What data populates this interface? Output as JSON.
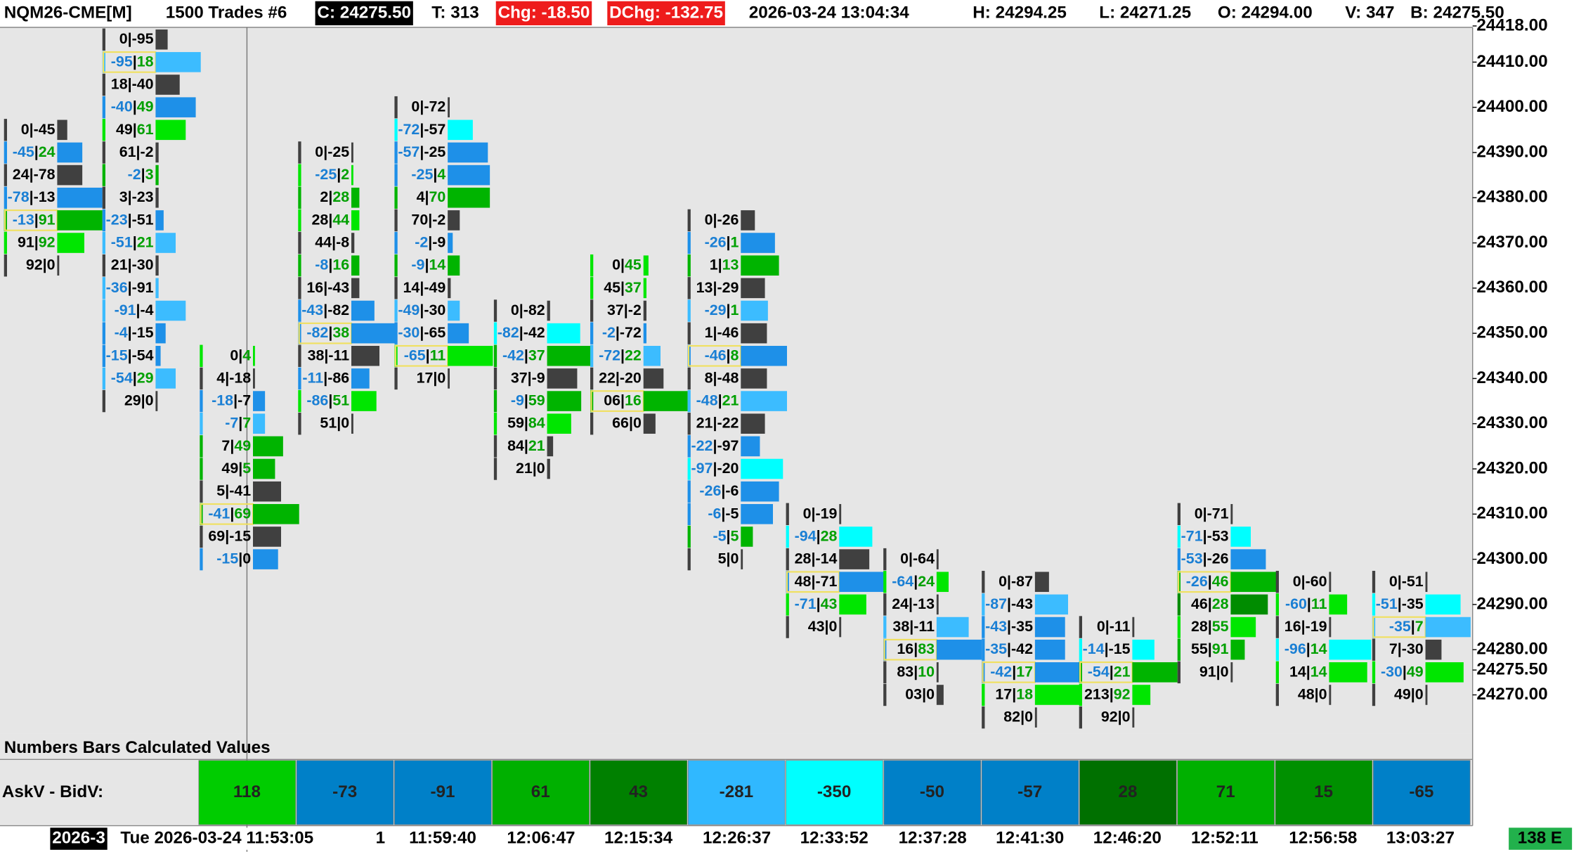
{
  "header": {
    "items": [
      {
        "text": "NQM26-CME[M]"
      },
      {
        "text": "1500 Trades #6"
      },
      {
        "text": "C: 24275.50",
        "bg": "#000000"
      },
      {
        "text": "T: 313"
      },
      {
        "text": "Chg: -18.50",
        "bg": "#ee1c1c"
      },
      {
        "text": "DChg: -132.75",
        "bg": "#ee1c1c"
      },
      {
        "text": "2026-03-24 13:04:34"
      },
      {
        "text": "H: 24294.25"
      },
      {
        "text": "L: 24271.25"
      },
      {
        "text": "O: 24294.00"
      },
      {
        "text": "V: 347"
      },
      {
        "text": "B: 24275.50"
      }
    ]
  },
  "price_axis": {
    "ylim": [
      24261.5,
      24417.7
    ],
    "ticks": [
      {
        "value": 24418,
        "label": "24418.00"
      },
      {
        "value": 24410,
        "label": "24410.00"
      },
      {
        "value": 24400,
        "label": "24400.00"
      },
      {
        "value": 24390,
        "label": "24390.00"
      },
      {
        "value": 24380,
        "label": "24380.00"
      },
      {
        "value": 24370,
        "label": "24370.00"
      },
      {
        "value": 24360,
        "label": "24360.00"
      },
      {
        "value": 24350,
        "label": "24350.00"
      },
      {
        "value": 24340,
        "label": "24340.00"
      },
      {
        "value": 24330,
        "label": "24330.00"
      },
      {
        "value": 24320,
        "label": "24320.00"
      },
      {
        "value": 24310,
        "label": "24310.00"
      },
      {
        "value": 24300,
        "label": "24300.00"
      },
      {
        "value": 24290,
        "label": "24290.00"
      },
      {
        "value": 24280,
        "label": "24280.00"
      },
      {
        "value": 24275.5,
        "label": "24275.50"
      },
      {
        "value": 24270,
        "label": "24270.00"
      }
    ]
  },
  "bars": [
    {
      "top": 24395,
      "cells": [
        {
          "text": "0|-45",
          "volume": 10,
          "color": "#404040"
        },
        {
          "text": "-45|24",
          "volume": 25,
          "color": "#1e90e8"
        },
        {
          "text": "24|-78",
          "volume": 25,
          "color": "#404040"
        },
        {
          "text": "-78|-13",
          "volume": 45,
          "color": "#1e90e8"
        },
        {
          "text": "-13|91",
          "volume": 45,
          "color": "#00b400",
          "box": true
        },
        {
          "text": "91|92",
          "volume": 27,
          "color": "#00e600"
        },
        {
          "text": "92|0",
          "volume": 2,
          "color": "#404040"
        }
      ]
    },
    {
      "top": 24415,
      "cells": [
        {
          "text": "0|-95",
          "volume": 12,
          "color": "#404040"
        },
        {
          "text": "-95|18",
          "volume": 45,
          "color": "#3cbcff",
          "box": true
        },
        {
          "text": "18|-40",
          "volume": 24,
          "color": "#404040"
        },
        {
          "text": "-40|49",
          "volume": 40,
          "color": "#1e90e8"
        },
        {
          "text": "49|61",
          "volume": 30,
          "color": "#00e600"
        },
        {
          "text": "61|-2",
          "volume": 3,
          "color": "#404040"
        },
        {
          "text": "-2|3",
          "volume": 3,
          "color": "#00b400"
        },
        {
          "text": "3|-23",
          "volume": 3,
          "color": "#404040"
        },
        {
          "text": "-23|-51",
          "volume": 8,
          "color": "#1e90e8"
        },
        {
          "text": "-51|21",
          "volume": 20,
          "color": "#3cbcff"
        },
        {
          "text": "21|-30",
          "volume": 3,
          "color": "#404040"
        },
        {
          "text": "-36|-91",
          "volume": 3,
          "color": "#3cbcff"
        },
        {
          "text": "-91|-4",
          "volume": 30,
          "color": "#3cbcff"
        },
        {
          "text": "-4|-15",
          "volume": 10,
          "color": "#1e90e8"
        },
        {
          "text": "-15|-54",
          "volume": 5,
          "color": "#1e90e8"
        },
        {
          "text": "-54|29",
          "volume": 20,
          "color": "#3cbcff"
        },
        {
          "text": "29|0",
          "volume": 2,
          "color": "#404040"
        }
      ]
    },
    {
      "top": 24345,
      "cells": [
        {
          "text": "0|4",
          "volume": 2,
          "color": "#00e600"
        },
        {
          "text": "4|-18",
          "volume": 2,
          "color": "#404040"
        },
        {
          "text": "-18|-7",
          "volume": 12,
          "color": "#1e90e8"
        },
        {
          "text": "-7|7",
          "volume": 12,
          "color": "#3cbcff"
        },
        {
          "text": "7|49",
          "volume": 30,
          "color": "#00b400"
        },
        {
          "text": "49|5",
          "volume": 22,
          "color": "#00b400"
        },
        {
          "text": "5|-41",
          "volume": 28,
          "color": "#404040"
        },
        {
          "text": "-41|69",
          "volume": 46,
          "color": "#00b400",
          "box": true
        },
        {
          "text": "69|-15",
          "volume": 28,
          "color": "#404040"
        },
        {
          "text": "-15|0",
          "volume": 25,
          "color": "#1e90e8"
        }
      ]
    },
    {
      "top": 24390,
      "cells": [
        {
          "text": "0|-25",
          "volume": 2,
          "color": "#404040"
        },
        {
          "text": "-25|2",
          "volume": 2,
          "color": "#00e600"
        },
        {
          "text": "2|28",
          "volume": 8,
          "color": "#00b400"
        },
        {
          "text": "28|44",
          "volume": 8,
          "color": "#00e600"
        },
        {
          "text": "44|-8",
          "volume": 3,
          "color": "#404040"
        },
        {
          "text": "-8|16",
          "volume": 8,
          "color": "#00b400"
        },
        {
          "text": "16|-43",
          "volume": 8,
          "color": "#404040"
        },
        {
          "text": "-43|-82",
          "volume": 23,
          "color": "#1e90e8"
        },
        {
          "text": "-82|38",
          "volume": 45,
          "color": "#1e90e8",
          "box": true
        },
        {
          "text": "38|-11",
          "volume": 28,
          "color": "#404040"
        },
        {
          "text": "-11|-86",
          "volume": 18,
          "color": "#1e90e8"
        },
        {
          "text": "-86|51",
          "volume": 25,
          "color": "#00e600"
        },
        {
          "text": "51|0",
          "volume": 2,
          "color": "#404040"
        }
      ]
    },
    {
      "top": 24400,
      "cells": [
        {
          "text": "0|-72",
          "volume": 2,
          "color": "#404040"
        },
        {
          "text": "-72|-57",
          "volume": 25,
          "color": "#00ffff"
        },
        {
          "text": "-57|-25",
          "volume": 40,
          "color": "#1e90e8"
        },
        {
          "text": "-25|4",
          "volume": 42,
          "color": "#1e90e8"
        },
        {
          "text": "4|70",
          "volume": 42,
          "color": "#00b400"
        },
        {
          "text": "70|-2",
          "volume": 12,
          "color": "#404040"
        },
        {
          "text": "-2|-9",
          "volume": 5,
          "color": "#1e90e8"
        },
        {
          "text": "-9|14",
          "volume": 12,
          "color": "#00b400"
        },
        {
          "text": "14|-49",
          "volume": 3,
          "color": "#404040"
        },
        {
          "text": "-49|-30",
          "volume": 12,
          "color": "#3cbcff"
        },
        {
          "text": "-30|-65",
          "volume": 21,
          "color": "#1e90e8"
        },
        {
          "text": "-65|11",
          "volume": 45,
          "color": "#00e600",
          "box": true
        },
        {
          "text": "17|0",
          "volume": 2,
          "color": "#404040"
        }
      ]
    },
    {
      "top": 24355,
      "cells": [
        {
          "text": "0|-82",
          "volume": 3,
          "color": "#404040"
        },
        {
          "text": "-82|-42",
          "volume": 33,
          "color": "#00ffff"
        },
        {
          "text": "-42|37",
          "volume": 45,
          "color": "#00b400"
        },
        {
          "text": "37|-9",
          "volume": 30,
          "color": "#404040"
        },
        {
          "text": "-9|59",
          "volume": 34,
          "color": "#00b400"
        },
        {
          "text": "59|84",
          "volume": 24,
          "color": "#00e600"
        },
        {
          "text": "84|21",
          "volume": 6,
          "color": "#404040"
        },
        {
          "text": "21|0",
          "volume": 3,
          "color": "#404040"
        }
      ]
    },
    {
      "top": 24365,
      "cells": [
        {
          "text": "0|45",
          "volume": 5,
          "color": "#00e600"
        },
        {
          "text": "45|37",
          "volume": 3,
          "color": "#00e600"
        },
        {
          "text": "37|-2",
          "volume": 3,
          "color": "#404040"
        },
        {
          "text": "-2|-72",
          "volume": 3,
          "color": "#1e90e8"
        },
        {
          "text": "-72|22",
          "volume": 17,
          "color": "#3cbcff"
        },
        {
          "text": "22|-20",
          "volume": 20,
          "color": "#404040"
        },
        {
          "text": "06|16",
          "volume": 44,
          "color": "#00b400",
          "box": true
        },
        {
          "text": "66|0",
          "volume": 12,
          "color": "#404040"
        }
      ]
    },
    {
      "top": 24375,
      "cells": [
        {
          "text": "0|-26",
          "volume": 14,
          "color": "#404040"
        },
        {
          "text": "-26|1",
          "volume": 34,
          "color": "#1e90e8"
        },
        {
          "text": "1|13",
          "volume": 38,
          "color": "#00b400"
        },
        {
          "text": "13|-29",
          "volume": 24,
          "color": "#404040"
        },
        {
          "text": "-29|1",
          "volume": 27,
          "color": "#3cbcff"
        },
        {
          "text": "1|-46",
          "volume": 26,
          "color": "#404040"
        },
        {
          "text": "-46|8",
          "volume": 46,
          "color": "#1e90e8",
          "box": true
        },
        {
          "text": "8|-48",
          "volume": 26,
          "color": "#404040"
        },
        {
          "text": "-48|21",
          "volume": 46,
          "color": "#3cbcff"
        },
        {
          "text": "21|-22",
          "volume": 24,
          "color": "#404040"
        },
        {
          "text": "-22|-97",
          "volume": 19,
          "color": "#1e90e8"
        },
        {
          "text": "-97|-20",
          "volume": 42,
          "color": "#00ffff"
        },
        {
          "text": "-26|-6",
          "volume": 38,
          "color": "#1e90e8"
        },
        {
          "text": "-6|-5",
          "volume": 32,
          "color": "#1e90e8"
        },
        {
          "text": "-5|5",
          "volume": 12,
          "color": "#00b400"
        },
        {
          "text": "5|0",
          "volume": 2,
          "color": "#404040"
        }
      ]
    },
    {
      "top": 24310,
      "cells": [
        {
          "text": "0|-19",
          "volume": 2,
          "color": "#404040"
        },
        {
          "text": "-94|28",
          "volume": 33,
          "color": "#00ffff"
        },
        {
          "text": "28|-14",
          "volume": 30,
          "color": "#404040"
        },
        {
          "text": "48|-71",
          "volume": 45,
          "color": "#1e90e8",
          "box": true
        },
        {
          "text": "-71|43",
          "volume": 27,
          "color": "#00e600"
        },
        {
          "text": "43|0",
          "volume": 2,
          "color": "#404040"
        }
      ]
    },
    {
      "top": 24300,
      "cells": [
        {
          "text": "0|-64",
          "volume": 2,
          "color": "#404040"
        },
        {
          "text": "-64|24",
          "volume": 12,
          "color": "#00e600"
        },
        {
          "text": "24|-13",
          "volume": 2,
          "color": "#404040"
        },
        {
          "text": "38|-11",
          "volume": 32,
          "color": "#3cbcff"
        },
        {
          "text": "16|83",
          "volume": 45,
          "color": "#1e90e8",
          "box": true
        },
        {
          "text": "83|10",
          "volume": 2,
          "color": "#404040"
        },
        {
          "text": "03|0",
          "volume": 7,
          "color": "#404040"
        }
      ]
    },
    {
      "top": 24295,
      "cells": [
        {
          "text": "0|-87",
          "volume": 14,
          "color": "#404040"
        },
        {
          "text": "-87|-43",
          "volume": 33,
          "color": "#3cbcff"
        },
        {
          "text": "-43|-35",
          "volume": 30,
          "color": "#1e90e8"
        },
        {
          "text": "-35|-42",
          "volume": 30,
          "color": "#1e90e8"
        },
        {
          "text": "-42|17",
          "volume": 45,
          "color": "#1e90e8",
          "box": true
        },
        {
          "text": "17|18",
          "volume": 45,
          "color": "#00e600"
        },
        {
          "text": "82|0",
          "volume": 2,
          "color": "#404040"
        }
      ]
    },
    {
      "top": 24285,
      "cells": [
        {
          "text": "0|-11",
          "volume": 2,
          "color": "#404040"
        },
        {
          "text": "-14|-15",
          "volume": 22,
          "color": "#00ffff"
        },
        {
          "text": "-54|21",
          "volume": 45,
          "color": "#00b400",
          "box": true
        },
        {
          "text": "213|92",
          "volume": 18,
          "color": "#00e600"
        },
        {
          "text": "92|0",
          "volume": 2,
          "color": "#404040"
        }
      ]
    },
    {
      "top": 24310,
      "cells": [
        {
          "text": "0|-71",
          "volume": 2,
          "color": "#404040"
        },
        {
          "text": "-71|-53",
          "volume": 20,
          "color": "#00ffff"
        },
        {
          "text": "-53|-26",
          "volume": 35,
          "color": "#1e90e8"
        },
        {
          "text": "-26|46",
          "volume": 46,
          "color": "#00b400",
          "box": true
        },
        {
          "text": "46|28",
          "volume": 37,
          "color": "#008c00"
        },
        {
          "text": "28|55",
          "volume": 25,
          "color": "#00e600"
        },
        {
          "text": "55|91",
          "volume": 14,
          "color": "#00b400"
        },
        {
          "text": "91|0",
          "volume": 2,
          "color": "#404040"
        }
      ]
    },
    {
      "top": 24295,
      "cells": [
        {
          "text": "0|-60",
          "volume": 2,
          "color": "#404040"
        },
        {
          "text": "-60|11",
          "volume": 18,
          "color": "#00e600"
        },
        {
          "text": "16|-19",
          "volume": 2,
          "color": "#404040"
        },
        {
          "text": "-96|14",
          "volume": 42,
          "color": "#00ffff"
        },
        {
          "text": "14|14",
          "volume": 38,
          "color": "#00e600"
        },
        {
          "text": "48|0",
          "volume": 2,
          "color": "#404040"
        }
      ]
    },
    {
      "top": 24295,
      "cells": [
        {
          "text": "0|-51",
          "volume": 2,
          "color": "#404040"
        },
        {
          "text": "-51|-35",
          "volume": 35,
          "color": "#00ffff"
        },
        {
          "text": "-35|7",
          "volume": 45,
          "color": "#3cbcff",
          "box": true
        },
        {
          "text": "7|-30",
          "volume": 16,
          "color": "#404040"
        },
        {
          "text": "-30|49",
          "volume": 38,
          "color": "#00e600"
        },
        {
          "text": "49|0",
          "volume": 2,
          "color": "#404040"
        }
      ]
    }
  ],
  "study": {
    "title": "Numbers Bars Calculated Values",
    "row_label": "AskV - BidV:",
    "values": [
      118,
      -73,
      -91,
      61,
      43,
      -281,
      -350,
      -50,
      -57,
      28,
      71,
      15,
      -65
    ],
    "colors": [
      "#00cc00",
      "#0080c8",
      "#0080c8",
      "#00b000",
      "#008000",
      "#30b8ff",
      "#00ffff",
      "#0080c8",
      "#0080c8",
      "#007000",
      "#00b000",
      "#009000",
      "#0080c8"
    ]
  },
  "time_axis": {
    "labels": [
      "2026-3",
      "Tue 2026-03-24 11:53:05",
      "1",
      "11:59:40",
      "12:06:47",
      "12:15:34",
      "12:26:37",
      "12:33:52",
      "12:37:28",
      "12:41:30",
      "12:46:20",
      "12:52:11",
      "12:56:58",
      "13:03:27"
    ],
    "status": "138 E"
  }
}
